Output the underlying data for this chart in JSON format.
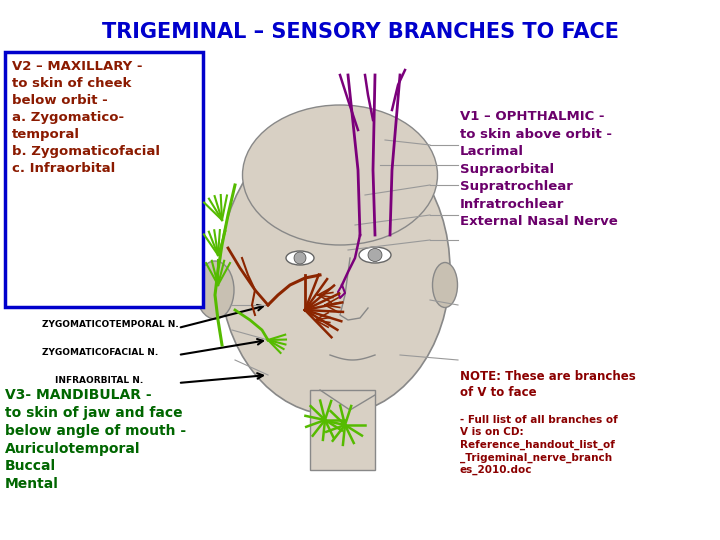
{
  "title": "TRIGEMINAL – SENSORY BRANCHES TO FACE",
  "title_color": "#0000CC",
  "title_fontsize": 15,
  "bg_color": "#FFFFFF",
  "v2_box_text": "V2 – MAXILLARY -\nto skin of cheek\nbelow orbit -\na. Zygomatico-\ntemporal\nb. Zygomaticofacial\nc. Infraorbital",
  "v2_box_color": "#8B1A00",
  "v2_box_border": "#0000CC",
  "v1_text": "V1 – OPHTHALMIC -\nto skin above orbit -\nLacrimal\nSupraorbital\nSupratrochlear\nInfratrochlear\nExternal Nasal Nerve",
  "v1_color": "#6B006B",
  "label_zygo_temp": "ZYGOMATICOTEMPORAL N.",
  "label_zygo_fac": "ZYGOMATICOFACIAL N.",
  "label_infra": "INFRAORBITAL N.",
  "label_color": "#000000",
  "label_fontsize": 6.5,
  "v3_text": "V3- MANDIBULAR -\nto skin of jaw and face\nbelow angle of mouth -\nAuriculotemporal\nBuccal\nMental",
  "v3_color": "#006600",
  "note_text": "NOTE: These are branches\nof V to face",
  "note_color": "#8B0000",
  "ref_text": "- Full list of all branches of\nV is on CD:\nReference_handout_list_of\n_Trigeminal_nerve_branch\nes_2010.doc",
  "ref_color": "#8B0000",
  "purple": "#7B007B",
  "green": "#55BB00",
  "brown": "#8B2500",
  "gray_face": "#C8C0B0",
  "gray_line": "#999999"
}
